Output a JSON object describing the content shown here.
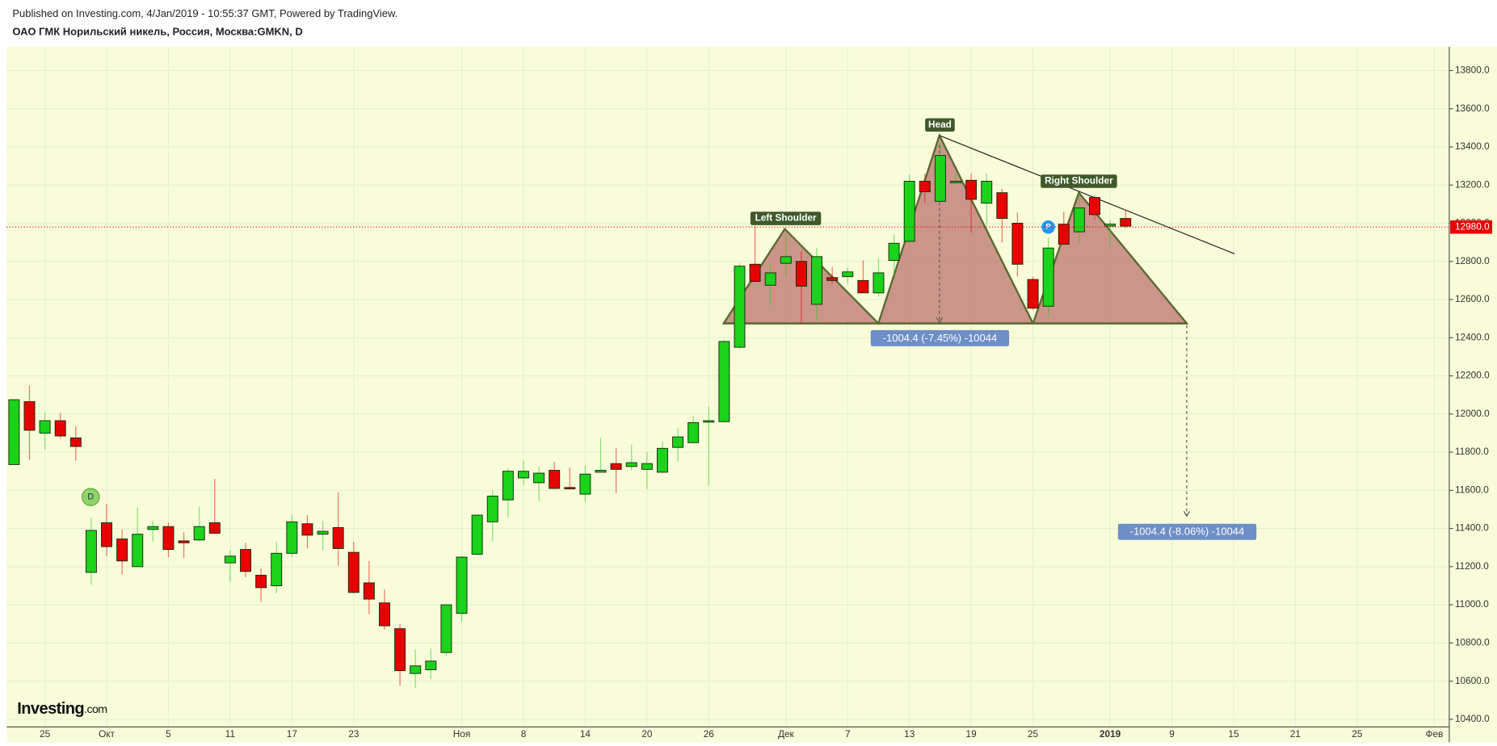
{
  "header": {
    "published": "Published on Investing.com, 4/Jan/2019 - 10:55:37 GMT, Powered by TradingView.",
    "symbol": "ОАО ГМК Норильский никель, Россия, Москва:GMKN, D"
  },
  "logo": {
    "name": "Investing",
    "suffix": ".com"
  },
  "chart_data": {
    "type": "candlestick",
    "categories": [
      null,
      null,
      "25",
      null,
      null,
      null,
      "Окт",
      null,
      null,
      null,
      "5",
      null,
      null,
      null,
      "11",
      null,
      null,
      null,
      "17",
      null,
      null,
      null,
      "23",
      null,
      null,
      null,
      null,
      null,
      null,
      "Ноя",
      null,
      null,
      null,
      "8",
      null,
      null,
      null,
      "14",
      null,
      null,
      null,
      "20",
      null,
      null,
      null,
      "26",
      null,
      null,
      null,
      null,
      "Дек",
      null,
      null,
      null,
      "7",
      null,
      null,
      null,
      "13",
      null,
      null,
      null,
      "19",
      null,
      null,
      null,
      "25",
      null,
      null,
      null,
      null,
      "2019",
      null,
      null,
      null,
      "9",
      null,
      null,
      null,
      "15",
      null,
      null,
      null,
      "21",
      null,
      null,
      null,
      "25",
      null,
      null,
      null,
      null,
      "Фев",
      null
    ],
    "open": [
      11735,
      12065,
      11900,
      11965,
      11875,
      11170,
      11430,
      11345,
      11200,
      11395,
      11410,
      11335,
      11340,
      11430,
      11220,
      11290,
      11155,
      11100,
      11270,
      11425,
      11370,
      11405,
      11275,
      11115,
      11010,
      10875,
      10640,
      10660,
      10750,
      10955,
      11265,
      11435,
      11550,
      11665,
      11640,
      11705,
      11615,
      11580,
      11695,
      11740,
      11725,
      11710,
      11695,
      11825,
      11850,
      11960,
      11960,
      12350,
      12785,
      12675,
      12790,
      12800,
      12575,
      12715,
      12720,
      12700,
      12635,
      12805,
      12905,
      13220,
      13115,
      13215,
      13225,
      13105,
      13160,
      13000,
      12705,
      12565,
      12995,
      12955,
      13135,
      12985,
      13025,
      null,
      null,
      null,
      null,
      null,
      null,
      null,
      null,
      null,
      null,
      null,
      null,
      null,
      null,
      null,
      null,
      null,
      null,
      null,
      null,
      null
    ],
    "high": [
      12075,
      12150,
      12010,
      12005,
      11935,
      11455,
      11530,
      11395,
      11510,
      11440,
      11430,
      11380,
      11515,
      11660,
      11285,
      11325,
      11190,
      11330,
      11470,
      11470,
      11440,
      11590,
      11330,
      11230,
      11080,
      10900,
      10765,
      10770,
      11000,
      11255,
      11475,
      11600,
      11715,
      11755,
      11725,
      11750,
      11720,
      11730,
      11875,
      11820,
      11840,
      11800,
      11855,
      11925,
      11990,
      12040,
      12390,
      12790,
      12985,
      12785,
      12940,
      12855,
      12870,
      12770,
      12770,
      12805,
      12815,
      12940,
      13255,
      13260,
      13420,
      13265,
      13260,
      13260,
      13180,
      13055,
      12720,
      12925,
      13060,
      13155,
      13145,
      13015,
      13070,
      null,
      null,
      null,
      null,
      null,
      null,
      null,
      null,
      null,
      null,
      null,
      null,
      null,
      null,
      null,
      null,
      null,
      null,
      null,
      null,
      null
    ],
    "low": [
      11735,
      11760,
      11815,
      11870,
      11755,
      11105,
      11255,
      11160,
      11200,
      11330,
      11250,
      11245,
      11330,
      11370,
      11120,
      11145,
      11015,
      11060,
      11250,
      11295,
      11285,
      11205,
      11060,
      10950,
      10870,
      10575,
      10565,
      10610,
      10730,
      10910,
      11260,
      11335,
      11460,
      11625,
      11545,
      11605,
      11605,
      11540,
      11695,
      11585,
      11705,
      11605,
      11690,
      11750,
      11845,
      11625,
      11955,
      12340,
      12690,
      12570,
      12720,
      12470,
      12485,
      12685,
      12680,
      12635,
      12615,
      12725,
      12900,
      13105,
      13110,
      13215,
      12950,
      12985,
      12900,
      12720,
      12545,
      12505,
      12885,
      12895,
      13020,
      12880,
      12975,
      null,
      null,
      null,
      null,
      null,
      null,
      null,
      null,
      null,
      null,
      null,
      null,
      null,
      null,
      null,
      null,
      null,
      null,
      null,
      null,
      null
    ],
    "close": [
      12075,
      11915,
      11965,
      11885,
      11830,
      11390,
      11305,
      11230,
      11370,
      11410,
      11290,
      11325,
      11410,
      11375,
      11255,
      11175,
      11090,
      11270,
      11435,
      11365,
      11385,
      11295,
      11065,
      11030,
      10890,
      10655,
      10680,
      10705,
      11000,
      11250,
      11470,
      11570,
      11700,
      11700,
      11690,
      11610,
      11610,
      11685,
      11705,
      11710,
      11745,
      11740,
      11820,
      11880,
      11955,
      11965,
      12380,
      12775,
      12695,
      12740,
      12825,
      12670,
      12825,
      12700,
      12745,
      12635,
      12740,
      12895,
      13220,
      13165,
      13355,
      13220,
      13125,
      13220,
      13025,
      12785,
      12555,
      12870,
      12890,
      13080,
      13045,
      12995,
      12985,
      null,
      null,
      null,
      null,
      null,
      null,
      null,
      null,
      null,
      null,
      null,
      null,
      null,
      null,
      null,
      null,
      null,
      null,
      null,
      null,
      null
    ],
    "up_color": "#1ad31a",
    "down_color": "#e80000",
    "ylim": [
      10360,
      13925
    ],
    "yticks": [
      {
        "value": 10400,
        "label": "10400.0"
      },
      {
        "value": 10600,
        "label": "10600.0"
      },
      {
        "value": 10800,
        "label": "10800.0"
      },
      {
        "value": 11000,
        "label": "11000.0"
      },
      {
        "value": 11200,
        "label": "11200.0"
      },
      {
        "value": 11400,
        "label": "11400.0"
      },
      {
        "value": 11600,
        "label": "11600.0"
      },
      {
        "value": 11800,
        "label": "11800.0"
      },
      {
        "value": 12000,
        "label": "12000.0"
      },
      {
        "value": 12200,
        "label": "12200.0"
      },
      {
        "value": 12400,
        "label": "12400.0"
      },
      {
        "value": 12600,
        "label": "12600.0"
      },
      {
        "value": 12800,
        "label": "12800.0"
      },
      {
        "value": 13000,
        "label": "13000.0"
      },
      {
        "value": 13200,
        "label": "13200.0"
      },
      {
        "value": 13400,
        "label": "13400.0"
      },
      {
        "value": 13600,
        "label": "13600.0"
      },
      {
        "value": 13800,
        "label": "13800.0"
      }
    ],
    "price_line": {
      "value": 12980,
      "label": "12980.0"
    },
    "grid": true,
    "annotations": {
      "left_shoulder": "Left Shoulder",
      "head": "Head",
      "right_shoulder": "Right Shoulder",
      "measure_1": "-1004.4 (-7.45%) -10044",
      "measure_2": "-1004.4 (-8.06%) -10044",
      "dividend_marker": "D",
      "marker_p": "P"
    }
  }
}
